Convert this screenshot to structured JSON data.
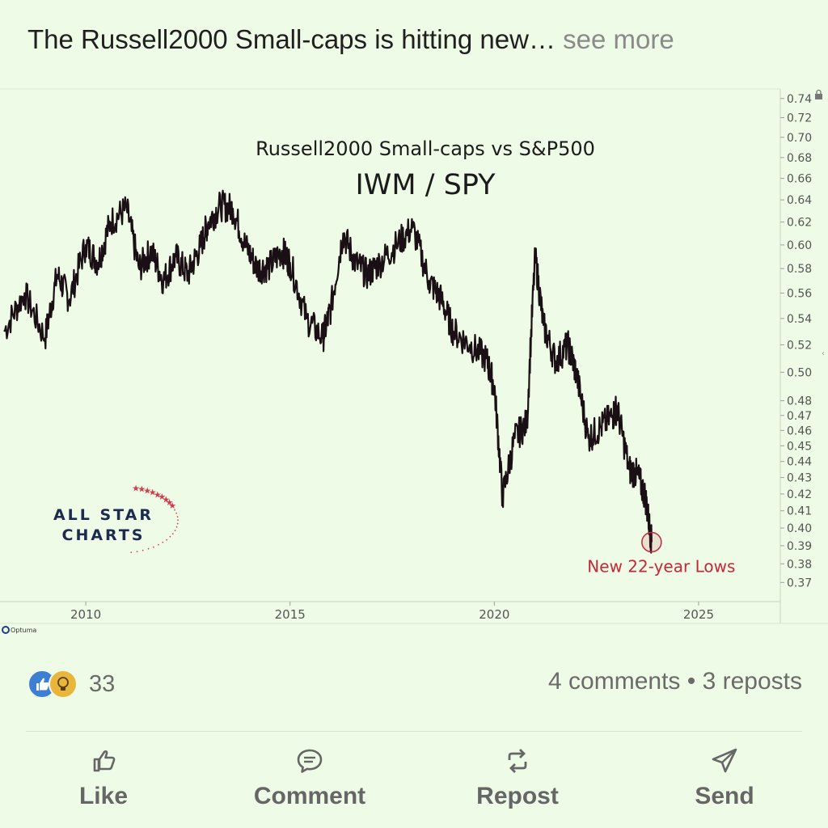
{
  "post": {
    "text": "The Russell2000 Small-caps is hitting new",
    "ellipsis": "…",
    "see_more": " see more"
  },
  "chart_data": {
    "type": "line",
    "title": "Russell2000 Small-caps vs S&P500",
    "subtitle": "IWM / SPY",
    "x": [
      2008.0,
      2008.5,
      2009.0,
      2009.3,
      2009.6,
      2010.0,
      2010.3,
      2010.6,
      2011.0,
      2011.3,
      2011.6,
      2011.9,
      2012.2,
      2012.5,
      2012.8,
      2013.0,
      2013.3,
      2013.6,
      2013.9,
      2014.2,
      2014.5,
      2014.8,
      2015.0,
      2015.4,
      2015.8,
      2016.0,
      2016.3,
      2016.6,
      2016.9,
      2017.2,
      2017.6,
      2018.0,
      2018.4,
      2018.7,
      2019.0,
      2019.4,
      2019.8,
      2020.0,
      2020.2,
      2020.5,
      2020.8,
      2021.0,
      2021.2,
      2021.5,
      2021.8,
      2022.0,
      2022.3,
      2022.6,
      2022.9,
      2023.0,
      2023.3,
      2023.5,
      2023.7,
      2023.85
    ],
    "y": [
      0.53,
      0.56,
      0.525,
      0.575,
      0.555,
      0.6,
      0.585,
      0.62,
      0.632,
      0.58,
      0.595,
      0.57,
      0.59,
      0.575,
      0.598,
      0.62,
      0.635,
      0.632,
      0.6,
      0.58,
      0.582,
      0.595,
      0.585,
      0.54,
      0.525,
      0.548,
      0.61,
      0.585,
      0.575,
      0.585,
      0.6,
      0.615,
      0.57,
      0.555,
      0.53,
      0.52,
      0.51,
      0.49,
      0.418,
      0.455,
      0.465,
      0.59,
      0.535,
      0.508,
      0.52,
      0.5,
      0.455,
      0.462,
      0.47,
      0.475,
      0.435,
      0.432,
      0.418,
      0.392
    ],
    "xlim": [
      2007.9,
      2027
    ],
    "ylim": [
      0.36,
      0.745
    ],
    "x_ticks": [
      "2010",
      "2015",
      "2020",
      "2025"
    ],
    "y_ticks": [
      "0.74",
      "0.72",
      "0.70",
      "0.68",
      "0.66",
      "0.64",
      "0.62",
      "0.60",
      "0.58",
      "0.56",
      "0.54",
      "0.52",
      "0.50",
      "0.48",
      "0.47",
      "0.46",
      "0.45",
      "0.44",
      "0.43",
      "0.42",
      "0.41",
      "0.40",
      "0.39",
      "0.38",
      "0.37"
    ],
    "scale": "log",
    "grid": false,
    "annotation": {
      "text": "New 22-year Lows",
      "x": 2023.85,
      "y": 0.392
    },
    "colors": {
      "line": "#1a0f14",
      "annotation": "#c4283a",
      "background": "#eefbe6"
    },
    "watermark": {
      "line1": "ALL STAR",
      "line2": "CHARTS"
    },
    "source": "Optuma"
  },
  "reactions": {
    "count": "33",
    "icons": [
      "like-icon",
      "idea-icon"
    ]
  },
  "social": {
    "comments": "4 comments",
    "separator": " • ",
    "reposts": "3 reposts"
  },
  "actions": [
    {
      "label": "Like",
      "icon": "thumbs-up-icon"
    },
    {
      "label": "Comment",
      "icon": "comment-icon"
    },
    {
      "label": "Repost",
      "icon": "repost-icon"
    },
    {
      "label": "Send",
      "icon": "send-icon"
    }
  ]
}
